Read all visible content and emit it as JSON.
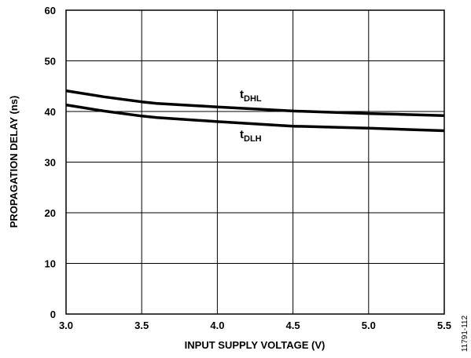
{
  "chart_data": {
    "type": "line",
    "xlabel": "INPUT SUPPLY VOLTAGE (V)",
    "ylabel": "PROPAGATION DELAY (ns)",
    "xlim": [
      3.0,
      5.5
    ],
    "ylim": [
      0,
      60
    ],
    "x_ticks": [
      3.0,
      3.5,
      4.0,
      4.5,
      5.0,
      5.5
    ],
    "x_tick_labels": [
      "3.0",
      "3.5",
      "4.0",
      "4.5",
      "5.0",
      "5.5"
    ],
    "y_ticks": [
      0,
      10,
      20,
      30,
      40,
      50,
      60
    ],
    "y_tick_labels": [
      "0",
      "10",
      "20",
      "30",
      "40",
      "50",
      "60"
    ],
    "grid": true,
    "series": [
      {
        "name": "tDHL",
        "label_main": "t",
        "label_sub": "DHL",
        "x": [
          3.0,
          3.25,
          3.5,
          3.6,
          4.0,
          4.5,
          5.0,
          5.5
        ],
        "y": [
          44.1,
          42.9,
          41.9,
          41.6,
          40.9,
          40.1,
          39.6,
          39.2
        ]
      },
      {
        "name": "tDLH",
        "label_main": "t",
        "label_sub": "DLH",
        "x": [
          3.0,
          3.25,
          3.5,
          3.6,
          4.0,
          4.5,
          5.0,
          5.5
        ],
        "y": [
          41.3,
          40.1,
          39.1,
          38.8,
          38.0,
          37.1,
          36.7,
          36.2
        ]
      }
    ],
    "figure_id": "11791-112"
  }
}
